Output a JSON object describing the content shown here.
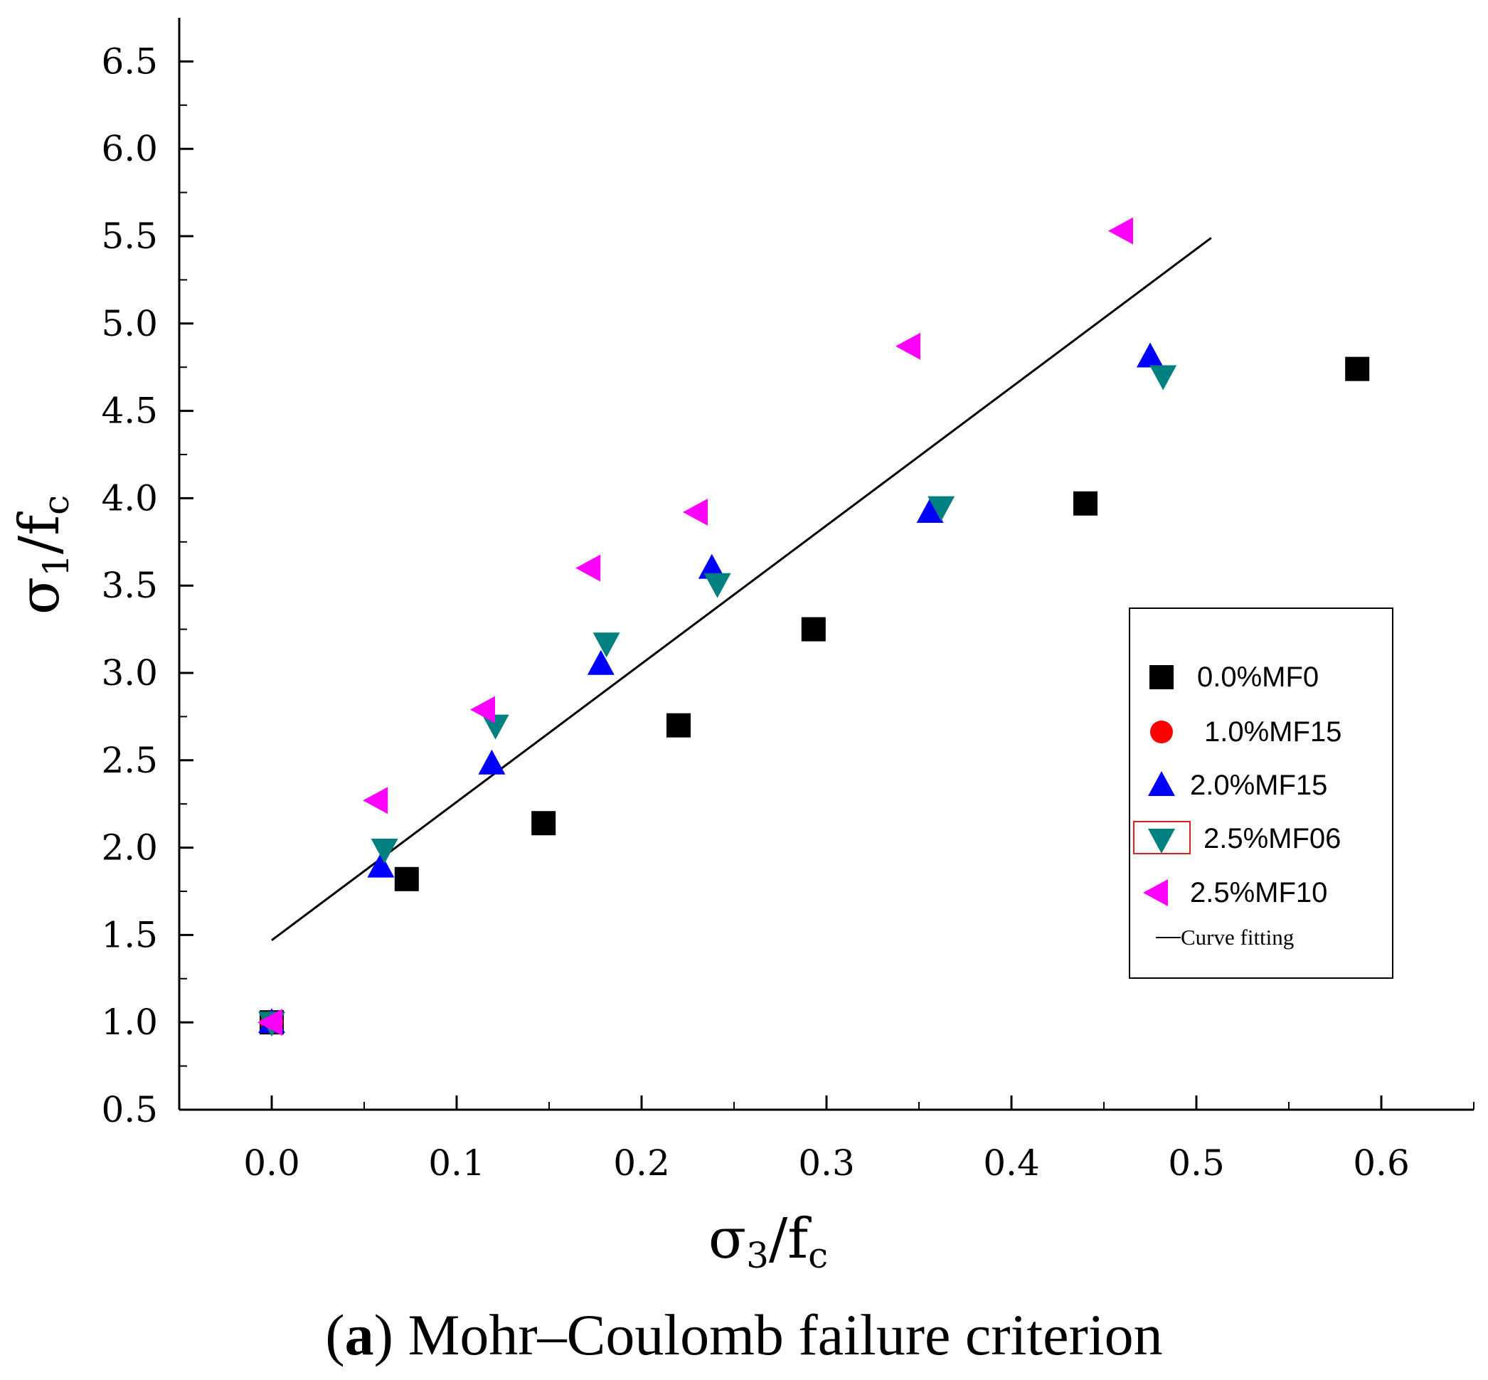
{
  "chart_data": {
    "type": "scatter",
    "title": "",
    "caption": {
      "label": "a",
      "text": "Mohr–Coulomb failure criterion"
    },
    "xlabel": {
      "main": "σ",
      "sub": "3",
      "rest": "/f",
      "sub2": "c"
    },
    "ylabel": {
      "main": "σ",
      "sub": "1",
      "rest": "/f",
      "sub2": "c"
    },
    "xlim": [
      -0.05,
      0.65
    ],
    "ylim": [
      0.5,
      6.75
    ],
    "xticks": [
      0.0,
      0.1,
      0.2,
      0.3,
      0.4,
      0.5,
      0.6
    ],
    "xtick_labels": [
      "0.0",
      "0.1",
      "0.2",
      "0.3",
      "0.4",
      "0.5",
      "0.6"
    ],
    "yticks": [
      0.5,
      1.0,
      1.5,
      2.0,
      2.5,
      3.0,
      3.5,
      4.0,
      4.5,
      5.0,
      5.5,
      6.0,
      6.5
    ],
    "ytick_labels": [
      "0.5",
      "1.0",
      "1.5",
      "2.0",
      "2.5",
      "3.0",
      "3.5",
      "4.0",
      "4.5",
      "5.0",
      "5.5",
      "6.0",
      "6.5"
    ],
    "grid": false,
    "legend_position": "right",
    "series": [
      {
        "name": "0.0%MF0",
        "marker": "square",
        "color": "#000000",
        "points": [
          [
            0.0,
            1.0
          ],
          [
            0.073,
            1.82
          ],
          [
            0.147,
            2.14
          ],
          [
            0.22,
            2.7
          ],
          [
            0.293,
            3.25
          ],
          [
            0.44,
            3.97
          ],
          [
            0.587,
            4.74
          ]
        ]
      },
      {
        "name": "1.0%MF15",
        "marker": "circle",
        "color": "#ff0000",
        "points": [
          [
            0.0,
            1.0
          ]
        ]
      },
      {
        "name": "2.0%MF15",
        "marker": "triangle-up",
        "color": "#0000ff",
        "points": [
          [
            0.0,
            1.0
          ],
          [
            0.059,
            1.89
          ],
          [
            0.119,
            2.48
          ],
          [
            0.178,
            3.05
          ],
          [
            0.238,
            3.6
          ],
          [
            0.356,
            3.92
          ],
          [
            0.475,
            4.81
          ]
        ]
      },
      {
        "name": "2.5%MF06",
        "marker": "triangle-down",
        "color": "#008080",
        "points": [
          [
            0.0,
            1.0
          ],
          [
            0.061,
            1.99
          ],
          [
            0.121,
            2.7
          ],
          [
            0.181,
            3.17
          ],
          [
            0.241,
            3.51
          ],
          [
            0.362,
            3.95
          ],
          [
            0.482,
            4.7
          ]
        ]
      },
      {
        "name": "2.5%MF10",
        "marker": "triangle-left",
        "color": "#ff00ff",
        "points": [
          [
            0.0,
            1.0
          ],
          [
            0.057,
            2.27
          ],
          [
            0.115,
            2.79
          ],
          [
            0.172,
            3.6
          ],
          [
            0.23,
            3.92
          ],
          [
            0.345,
            4.87
          ],
          [
            0.46,
            5.53
          ]
        ]
      }
    ],
    "fit_line": {
      "name": "Curve fitting",
      "color": "#000000",
      "x": [
        0.0,
        0.508
      ],
      "y": [
        1.47,
        5.49
      ]
    }
  }
}
